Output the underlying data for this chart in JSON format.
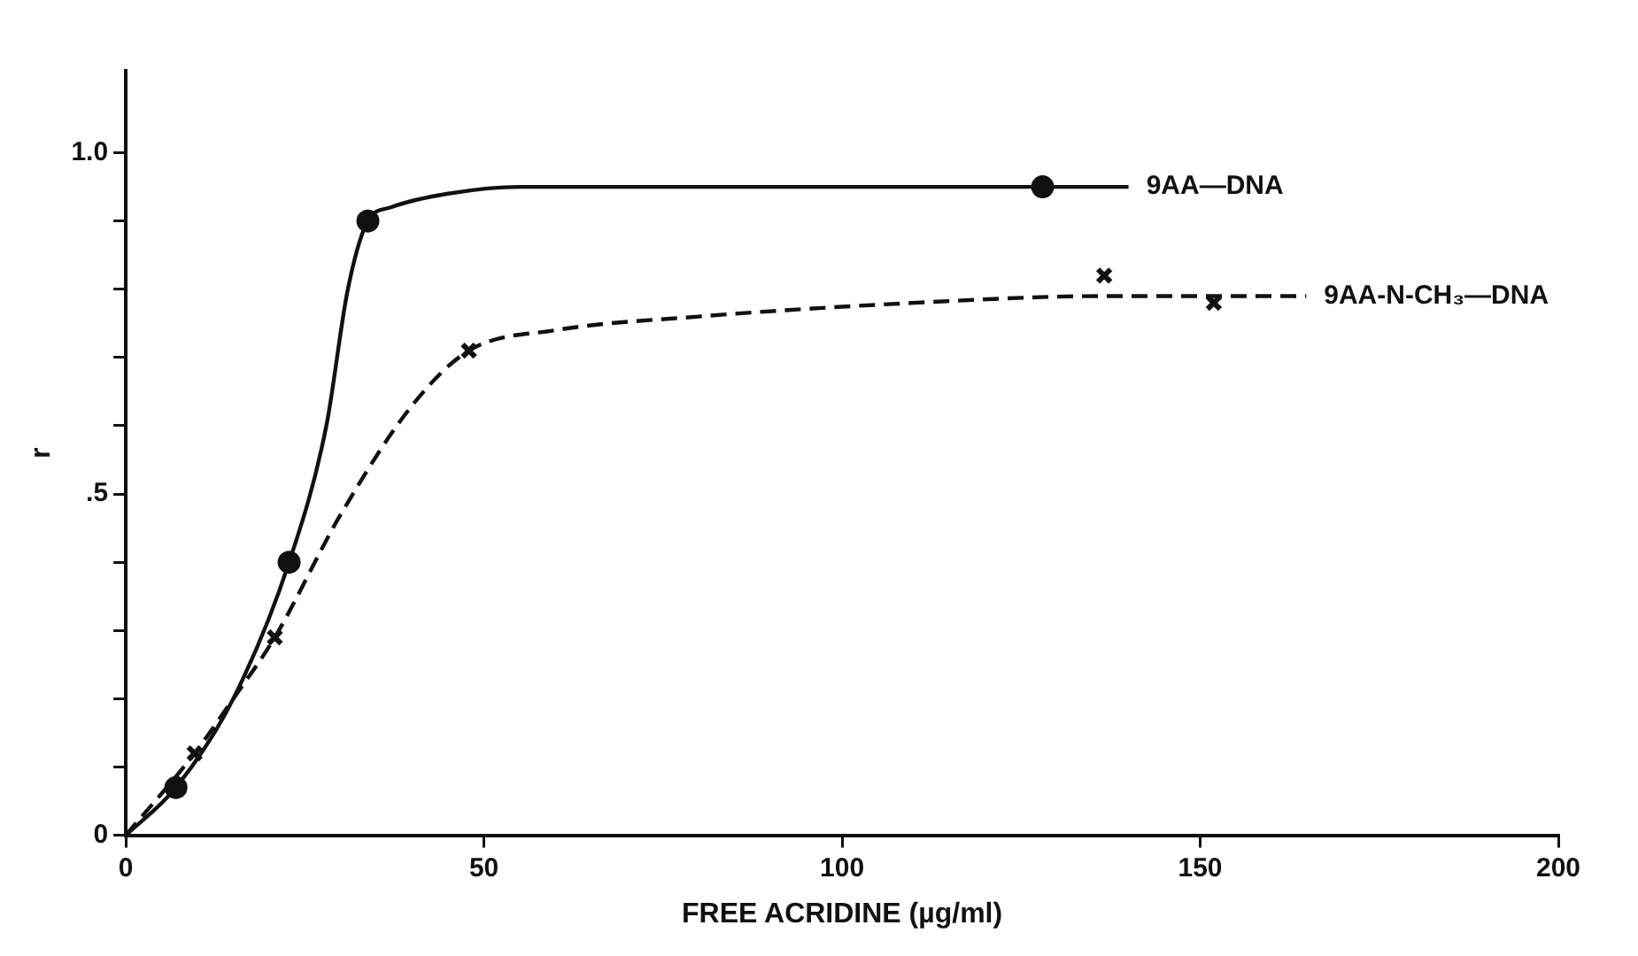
{
  "chart_data": {
    "type": "line",
    "xlabel": "FREE ACRIDINE (µg/ml)",
    "ylabel": "r",
    "xlim": [
      0,
      200
    ],
    "xticks": [
      0,
      50,
      100,
      150,
      200
    ],
    "ylim": [
      0,
      1.12
    ],
    "yticks": [
      0,
      {
        "value": 0.1,
        "label": null
      },
      {
        "value": 0.2,
        "label": null
      },
      {
        "value": 0.3,
        "label": null
      },
      {
        "value": 0.4,
        "label": null
      },
      {
        "value": 0.5,
        "label": ".5"
      },
      {
        "value": 0.6,
        "label": null
      },
      {
        "value": 0.7,
        "label": null
      },
      {
        "value": 0.8,
        "label": null
      },
      {
        "value": 0.9,
        "label": null
      },
      {
        "value": 1.0,
        "label": "1.0"
      }
    ],
    "grid": false,
    "legend": false,
    "series": [
      {
        "name": "9AA—DNA",
        "type": "line",
        "line_style": "solid",
        "marker": "none",
        "color": "#111111",
        "x": [
          0,
          7,
          15,
          22.8,
          28,
          31,
          33.8,
          37,
          45,
          55,
          80,
          128,
          140
        ],
        "values": [
          0,
          0.07,
          0.2,
          0.4,
          0.6,
          0.8,
          0.9,
          0.92,
          0.94,
          0.95,
          0.95,
          0.95,
          0.95
        ]
      },
      {
        "type": "scatter",
        "marker": "circle",
        "color": "#111111",
        "x": [
          7,
          22.8,
          33.8,
          128
        ],
        "values": [
          0.07,
          0.4,
          0.9,
          0.95
        ]
      },
      {
        "name": "9AA-N-CH₃—DNA",
        "type": "line",
        "line_style": "dashed",
        "marker": "none",
        "color": "#111111",
        "x": [
          0,
          9.6,
          15,
          20.8,
          30,
          40,
          47.9,
          60,
          80,
          110,
          136.6,
          151.9,
          164.8
        ],
        "values": [
          0,
          0.12,
          0.2,
          0.29,
          0.47,
          0.63,
          0.71,
          0.74,
          0.76,
          0.78,
          0.79,
          0.79,
          0.79
        ]
      },
      {
        "type": "scatter",
        "marker": "cross",
        "color": "#111111",
        "x": [
          9.6,
          20.8,
          47.9,
          136.6,
          151.9
        ],
        "values": [
          0.12,
          0.29,
          0.71,
          0.82,
          0.78
        ]
      }
    ]
  }
}
